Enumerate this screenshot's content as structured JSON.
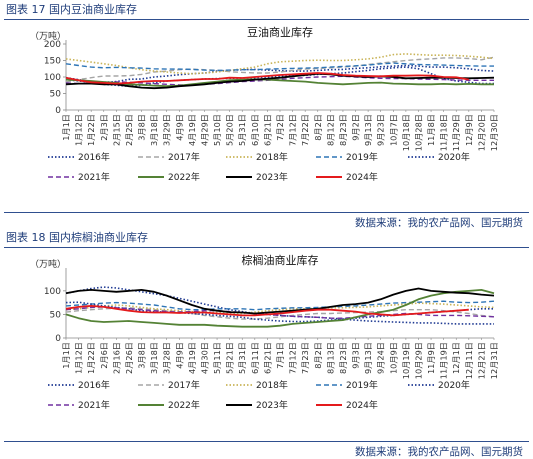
{
  "figures": [
    {
      "caption": "图表 17 国内豆油商业库存",
      "source": "数据来源：我的农产品网、国元期货",
      "chart_data": {
        "type": "line",
        "title": "豆油商业库存",
        "ylabel": "（万吨）",
        "ylim": [
          0,
          200
        ],
        "yticks": [
          0,
          50,
          100,
          150,
          200
        ],
        "grid": false,
        "legend_position": "bottom",
        "categories": [
          "1月1日",
          "1月12日",
          "1月22日",
          "2月3日",
          "2月15日",
          "2月25日",
          "3月8日",
          "3月18日",
          "3月29日",
          "4月9日",
          "4月19日",
          "4月29日",
          "5月10日",
          "5月20日",
          "5月31日",
          "6月10日",
          "6月21日",
          "7月2日",
          "7月12日",
          "7月22日",
          "8月2日",
          "8月12日",
          "8月23日",
          "9月2日",
          "9月13日",
          "9月23日",
          "10月7日",
          "10月18日",
          "10月28日",
          "11月8日",
          "11月18日",
          "11月29日",
          "12月9日",
          "12月20日",
          "12月30日"
        ],
        "series": [
          {
            "name": "2016年",
            "color": "#1f3a93",
            "dash": "dotted",
            "values": [
              92,
              88,
              84,
              84,
              86,
              93,
              94,
              100,
              103,
              107,
              110,
              112,
              118,
              120,
              122,
              123,
              121,
              119,
              118,
              118,
              120,
              122,
              123,
              126,
              128,
              131,
              133,
              135,
              133,
              130,
              130,
              128,
              125,
              120,
              118
            ]
          },
          {
            "name": "2017年",
            "color": "#a5a5a5",
            "dash": "dashed",
            "values": [
              85,
              92,
              98,
              103,
              103,
              104,
              108,
              115,
              118,
              122,
              124,
              122,
              120,
              116,
              114,
              112,
              112,
              115,
              120,
              124,
              126,
              128,
              130,
              133,
              138,
              142,
              146,
              150,
              153,
              155,
              158,
              158,
              156,
              152,
              160
            ]
          },
          {
            "name": "2018年",
            "color": "#c9b458",
            "dash": "dotted",
            "values": [
              155,
              150,
              145,
              140,
              135,
              128,
              122,
              118,
              115,
              112,
              110,
              112,
              115,
              120,
              125,
              130,
              140,
              146,
              148,
              150,
              151,
              150,
              150,
              152,
              155,
              160,
              168,
              170,
              168,
              166,
              166,
              165,
              163,
              160,
              156
            ]
          },
          {
            "name": "2019年",
            "color": "#2e75b6",
            "dash": "dashed",
            "values": [
              140,
              135,
              130,
              128,
              129,
              128,
              127,
              125,
              124,
              124,
              123,
              121,
              120,
              121,
              122,
              122,
              124,
              125,
              126,
              127,
              128,
              130,
              132,
              134,
              136,
              140,
              142,
              140,
              138,
              137,
              136,
              135,
              134,
              133,
              133
            ]
          },
          {
            "name": "2020年",
            "color": "#1f3a93",
            "dash": "dotted",
            "values": [
              98,
              92,
              85,
              78,
              75,
              72,
              75,
              82,
              88,
              90,
              92,
              94,
              95,
              96,
              97,
              98,
              100,
              102,
              104,
              105,
              108,
              110,
              112,
              116,
              120,
              125,
              128,
              130,
              125,
              110,
              95,
              88,
              84,
              80,
              80
            ]
          },
          {
            "name": "2021年",
            "color": "#7030a0",
            "dash": "dashed",
            "values": [
              82,
              80,
              81,
              83,
              85,
              84,
              82,
              80,
              78,
              76,
              76,
              78,
              80,
              83,
              86,
              88,
              90,
              93,
              96,
              98,
              100,
              101,
              102,
              100,
              98,
              96,
              95,
              95,
              94,
              93,
              92,
              91,
              90,
              90,
              90
            ]
          },
          {
            "name": "2022年",
            "color": "#548235",
            "dash": "solid",
            "values": [
              92,
              90,
              88,
              85,
              82,
              78,
              76,
              74,
              72,
              74,
              78,
              82,
              86,
              90,
              92,
              93,
              92,
              90,
              88,
              86,
              82,
              80,
              78,
              80,
              82,
              83,
              80,
              79,
              78,
              78,
              79,
              78,
              79,
              78,
              78
            ]
          },
          {
            "name": "2023年",
            "color": "#000000",
            "dash": "solid",
            "values": [
              78,
              80,
              80,
              78,
              78,
              72,
              68,
              66,
              68,
              72,
              75,
              78,
              82,
              86,
              88,
              92,
              95,
              98,
              102,
              106,
              110,
              108,
              104,
              102,
              100,
              102,
              100,
              96,
              97,
              98,
              98,
              97,
              96,
              97,
              98
            ]
          },
          {
            "name": "2024年",
            "color": "#e41a1c",
            "dash": "solid",
            "values": [
              98,
              90,
              84,
              82,
              80,
              82,
              86,
              88,
              88,
              90,
              92,
              94,
              94,
              98,
              97,
              100,
              103,
              106,
              108,
              110,
              112,
              110,
              106,
              104,
              103,
              102,
              104,
              104,
              105,
              104,
              100,
              99,
              92,
              null,
              null
            ]
          }
        ]
      }
    },
    {
      "caption": "图表 18 国内棕榈油商业库存",
      "source": "数据来源：我的农产品网、国元期货",
      "chart_data": {
        "type": "line",
        "title": "棕榈油商业库存",
        "ylabel": "（万吨）",
        "ylim": [
          0,
          140
        ],
        "yticks": [
          0,
          50,
          100
        ],
        "grid": false,
        "legend_position": "bottom",
        "categories": [
          "1月1日",
          "1月12日",
          "1月22日",
          "2月6日",
          "2月16日",
          "2月26日",
          "3月8日",
          "3月18日",
          "3月28日",
          "4月9日",
          "4月19日",
          "4月30日",
          "5月11日",
          "5月21日",
          "5月31日",
          "6月11日",
          "6月21日",
          "7月1日",
          "7月12日",
          "7月23日",
          "8月2日",
          "8月13日",
          "8月23日",
          "9月3日",
          "9月13日",
          "9月24日",
          "10月9日",
          "10月19日",
          "10月29日",
          "11月9日",
          "11月19日",
          "12月1日",
          "12月11日",
          "12月21日",
          "12月31日"
        ],
        "series": [
          {
            "name": "2016年",
            "color": "#1f3a93",
            "dash": "dotted",
            "values": [
              95,
              100,
              105,
              108,
              106,
              102,
              98,
              94,
              90,
              84,
              78,
              72,
              66,
              60,
              56,
              52,
              50,
              48,
              46,
              45,
              44,
              42,
              40,
              38,
              36,
              35,
              34,
              33,
              32,
              32,
              31,
              30,
              30,
              30,
              30
            ]
          },
          {
            "name": "2017年",
            "color": "#a5a5a5",
            "dash": "dashed",
            "values": [
              55,
              58,
              60,
              62,
              63,
              64,
              62,
              60,
              58,
              56,
              52,
              48,
              45,
              42,
              40,
              40,
              42,
              45,
              48,
              50,
              52,
              52,
              53,
              54,
              55,
              56,
              58,
              60,
              60,
              60,
              58,
              55,
              52,
              48,
              45
            ]
          },
          {
            "name": "2018年",
            "color": "#c9b458",
            "dash": "dotted",
            "values": [
              60,
              62,
              65,
              68,
              70,
              68,
              65,
              62,
              60,
              58,
              56,
              55,
              54,
              52,
              52,
              55,
              58,
              60,
              62,
              62,
              63,
              64,
              64,
              65,
              66,
              68,
              70,
              72,
              74,
              73,
              72,
              70,
              68,
              66,
              65
            ]
          },
          {
            "name": "2019年",
            "color": "#2e75b6",
            "dash": "dashed",
            "values": [
              68,
              70,
              72,
              74,
              75,
              74,
              72,
              70,
              66,
              62,
              60,
              60,
              62,
              62,
              62,
              60,
              62,
              63,
              64,
              64,
              65,
              66,
              67,
              68,
              70,
              72,
              74,
              75,
              76,
              77,
              78,
              76,
              75,
              76,
              78
            ]
          },
          {
            "name": "2020年",
            "color": "#1f3a93",
            "dash": "dotted",
            "values": [
              75,
              76,
              72,
              68,
              65,
              62,
              58,
              56,
              55,
              54,
              52,
              50,
              48,
              46,
              44,
              40,
              38,
              36,
              35,
              35,
              36,
              38,
              40,
              42,
              44,
              46,
              48,
              50,
              52,
              54,
              56,
              58,
              60,
              62,
              62
            ]
          },
          {
            "name": "2021年",
            "color": "#7030a0",
            "dash": "dashed",
            "values": [
              60,
              62,
              65,
              66,
              64,
              62,
              60,
              58,
              56,
              55,
              56,
              58,
              58,
              56,
              54,
              52,
              50,
              48,
              46,
              45,
              44,
              42,
              42,
              44,
              46,
              48,
              50,
              52,
              50,
              48,
              48,
              48,
              47,
              46,
              45
            ]
          },
          {
            "name": "2022年",
            "color": "#548235",
            "dash": "solid",
            "values": [
              50,
              42,
              36,
              34,
              35,
              36,
              34,
              32,
              30,
              28,
              28,
              28,
              26,
              25,
              24,
              24,
              24,
              26,
              30,
              32,
              34,
              36,
              38,
              44,
              50,
              55,
              60,
              70,
              82,
              90,
              95,
              98,
              100,
              102,
              95
            ]
          },
          {
            "name": "2023年",
            "color": "#000000",
            "dash": "solid",
            "values": [
              95,
              100,
              102,
              100,
              98,
              100,
              102,
              98,
              90,
              80,
              70,
              62,
              58,
              55,
              54,
              52,
              54,
              56,
              58,
              60,
              62,
              66,
              70,
              72,
              75,
              82,
              92,
              100,
              105,
              100,
              98,
              96,
              95,
              92,
              90
            ]
          },
          {
            "name": "2024年",
            "color": "#e41a1c",
            "dash": "solid",
            "values": [
              62,
              66,
              68,
              66,
              62,
              58,
              55,
              54,
              54,
              53,
              54,
              54,
              52,
              50,
              48,
              48,
              50,
              52,
              55,
              58,
              60,
              60,
              58,
              56,
              52,
              50,
              48,
              50,
              52,
              54,
              56,
              58,
              60,
              null,
              null
            ]
          }
        ]
      }
    }
  ]
}
